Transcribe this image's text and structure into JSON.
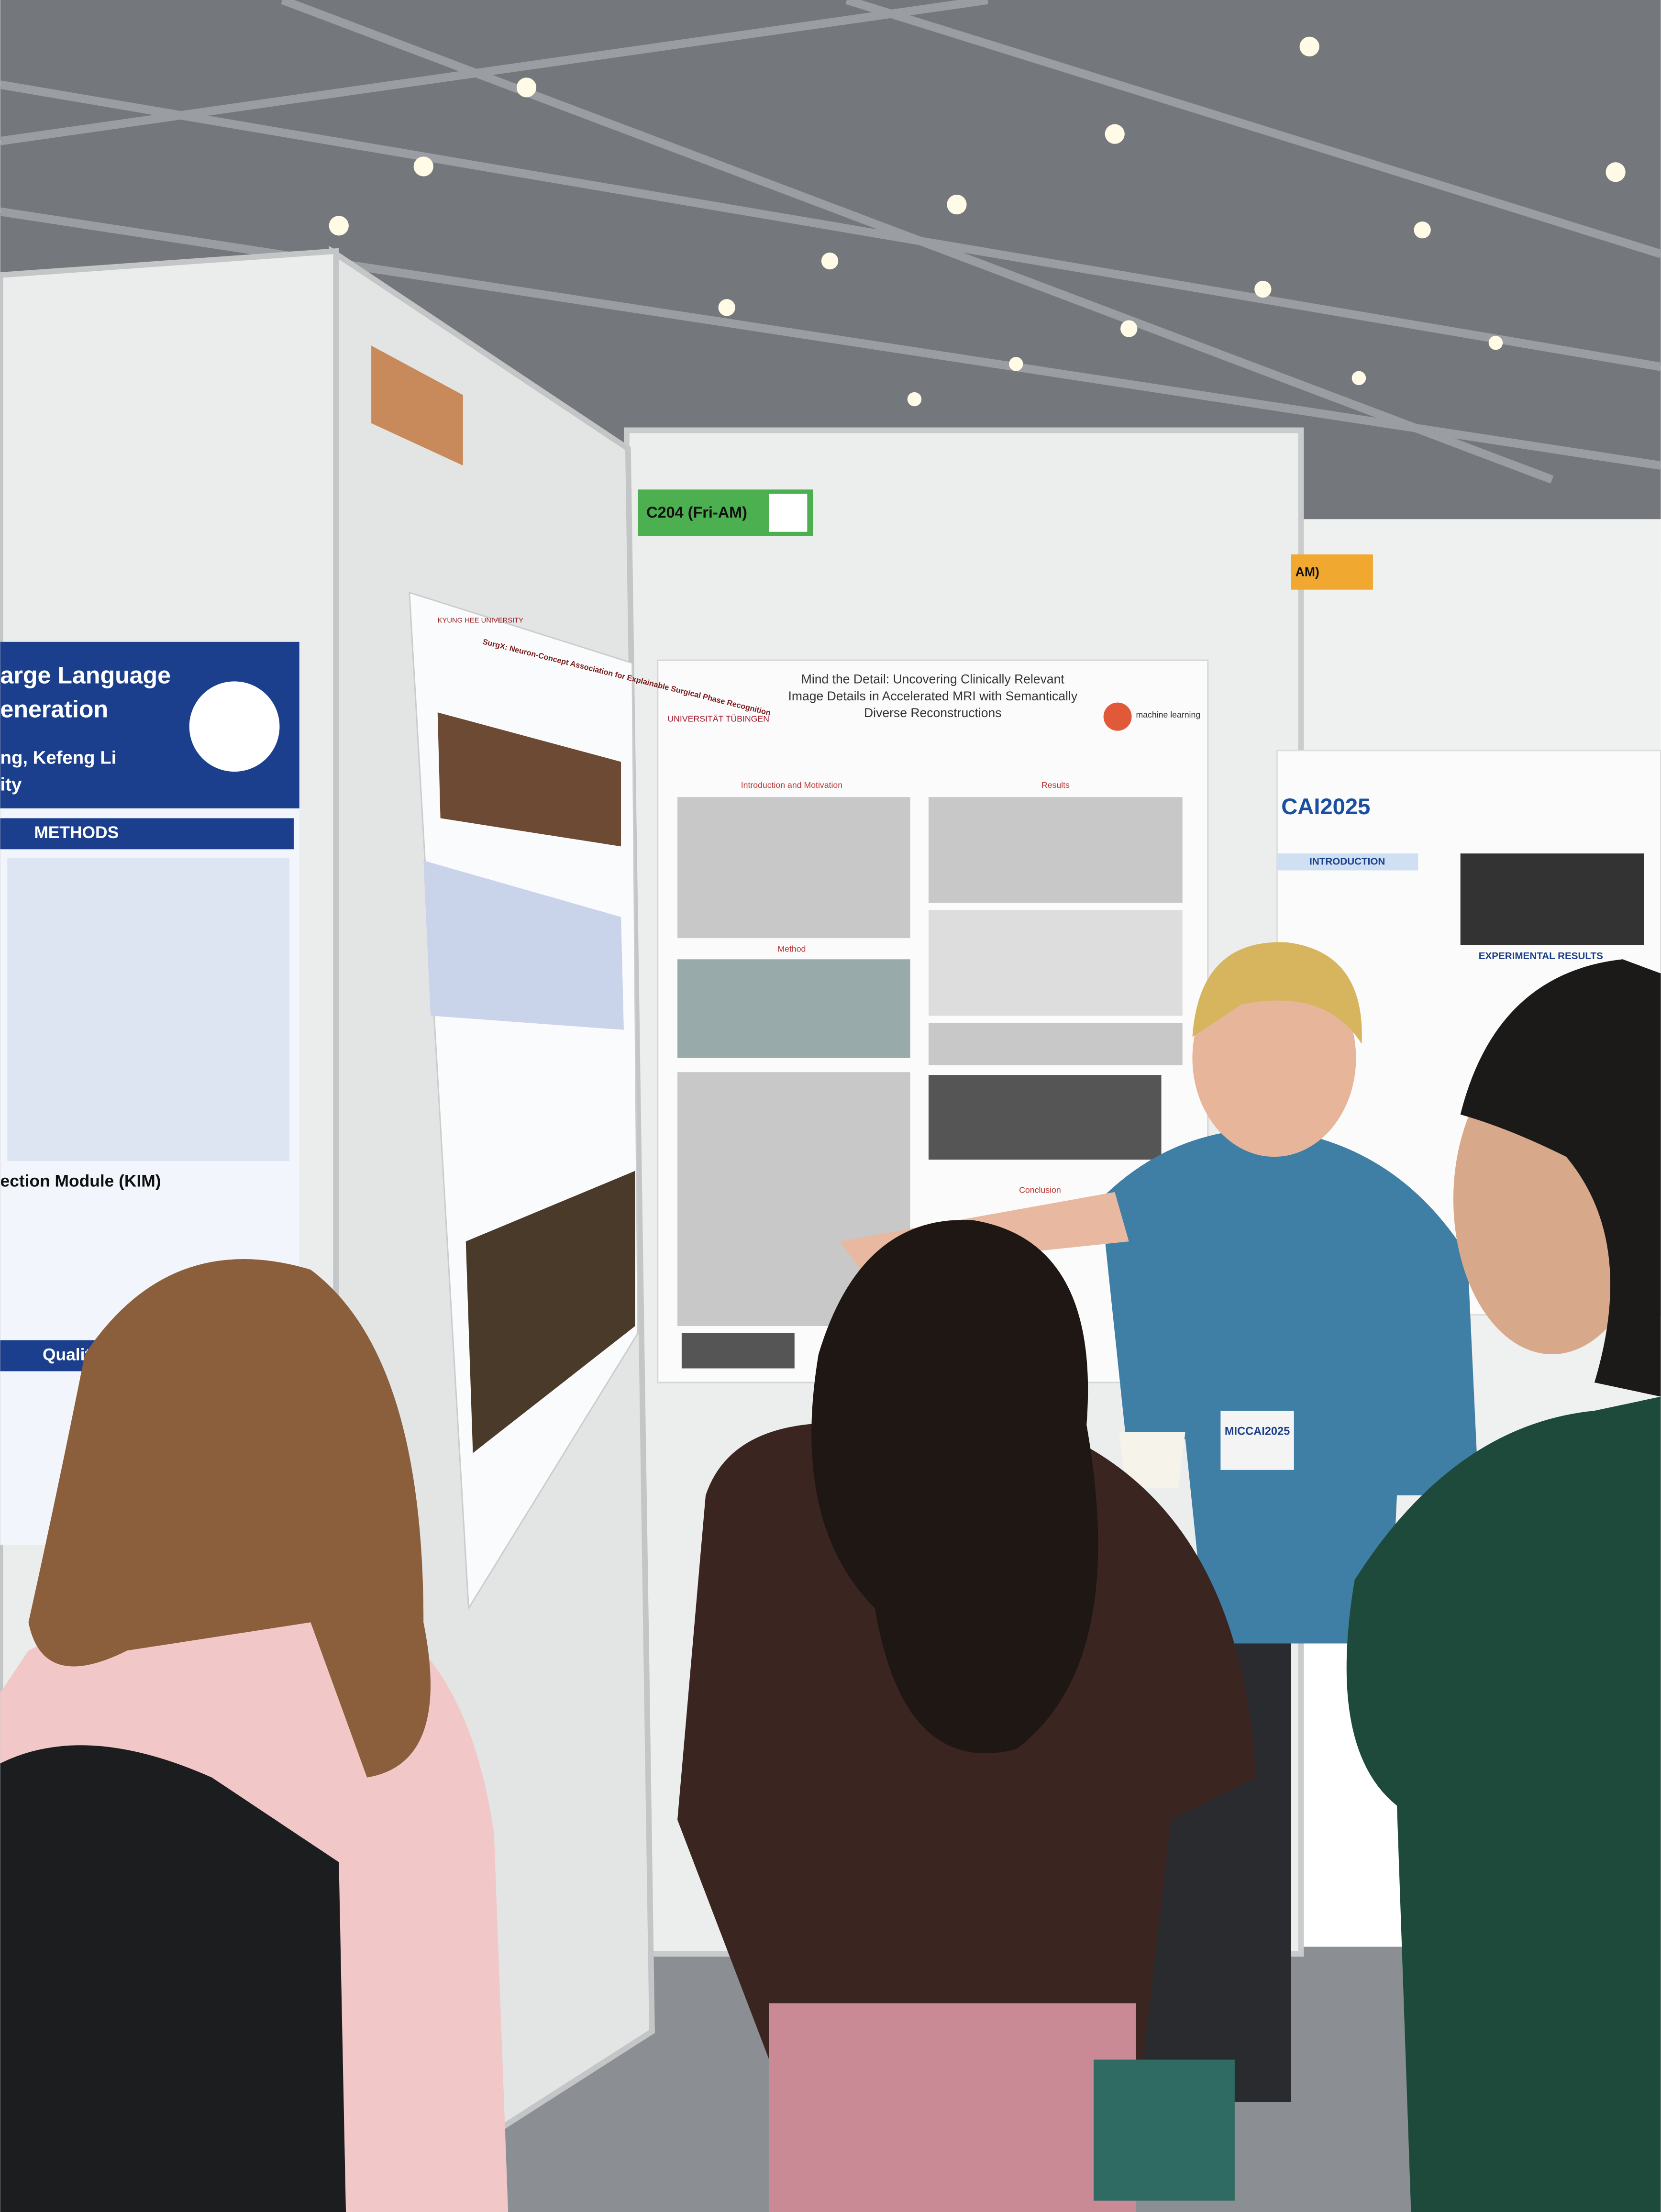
{
  "booth_label": "C204 (Fri-AM)",
  "side_booth_label": "AM)",
  "center_poster": {
    "title_lines": [
      "Mind the Detail: Uncovering Clinically Relevant",
      "Image Details in Accelerated MRI with Semantically",
      "Diverse Reconstructions"
    ],
    "university": "UNIVERSITÄT TÜBINGEN",
    "lab": "machine learning",
    "sections": [
      "Introduction and Motivation",
      "Results",
      "Method",
      "Conclusion"
    ]
  },
  "left_poster": {
    "title_lines": [
      "arge Language",
      "eneration"
    ],
    "authors": "ng, Kefeng Li",
    "affiliation": "ity",
    "section": "METHODS",
    "subsection": "Qualitative E",
    "module": "ection Module (KIM)"
  },
  "middle_poster": {
    "institution": "KYUNG HEE UNIVERSITY",
    "title": "SurgX: Neuron-Concept Association for Explainable Surgical Phase Recognition"
  },
  "right_poster": {
    "logo": "CAI2025",
    "sections": [
      "INTRODUCTION",
      "EXPERIMENTAL RESULTS"
    ]
  },
  "badge": "MICCAI2025"
}
